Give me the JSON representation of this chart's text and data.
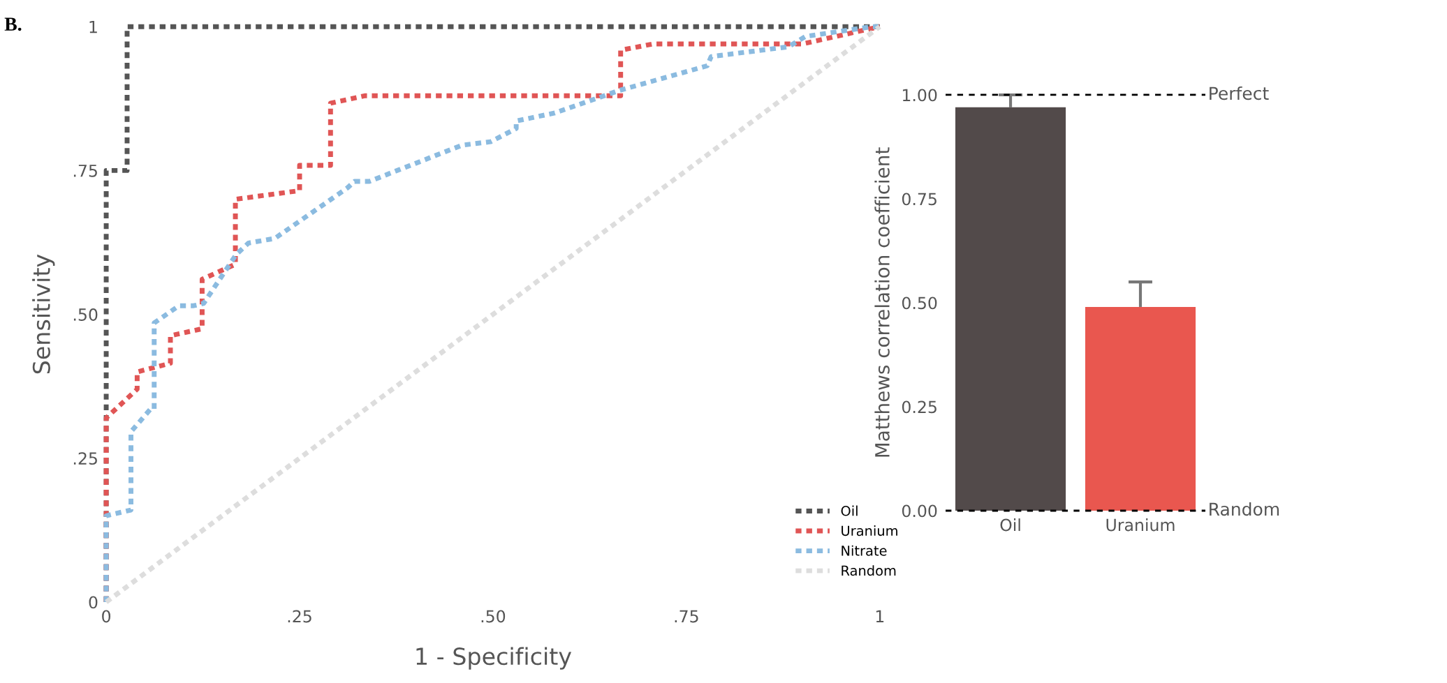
{
  "chart_data": [
    {
      "type": "line",
      "xlabel": "1 - Specificity",
      "ylabel": "Sensitivity",
      "annotations": [
        "B."
      ],
      "xlim": [
        0,
        1
      ],
      "ylim": [
        0,
        1
      ],
      "xticks": [
        0,
        {
          "value": 0.25,
          "label": ".25"
        },
        {
          "value": 0.5,
          "label": ".50"
        },
        {
          "value": 0.75,
          "label": ".75"
        },
        1
      ],
      "yticks": [
        0,
        {
          "value": 0.25,
          "label": ".25"
        },
        {
          "value": 0.5,
          "label": ".50"
        },
        {
          "value": 0.75,
          "label": ".75"
        },
        1
      ],
      "grid": false,
      "legend": "bottom right",
      "line_style": "dashed",
      "marker": "none",
      "series": [
        {
          "name": "Oil",
          "color": "#555555",
          "x": [
            0,
            0,
            0.027,
            0.027,
            1
          ],
          "values": [
            0,
            0.75,
            0.75,
            1,
            1
          ]
        },
        {
          "name": "Uranium",
          "color": "#e05555",
          "x": [
            0,
            0,
            0.04,
            0.04,
            0.083,
            0.083,
            0.124,
            0.124,
            0.167,
            0.167,
            0.25,
            0.25,
            0.29,
            0.29,
            0.335,
            0.665,
            0.665,
            0.707,
            0.9,
            1
          ],
          "values": [
            0,
            0.32,
            0.37,
            0.4,
            0.415,
            0.463,
            0.475,
            0.561,
            0.587,
            0.7,
            0.715,
            0.759,
            0.759,
            0.867,
            0.88,
            0.88,
            0.959,
            0.97,
            0.97,
            1
          ]
        },
        {
          "name": "Nitrate",
          "color": "#8bbbe0",
          "x": [
            0,
            0,
            0.032,
            0.032,
            0.057,
            0.062,
            0.062,
            0.094,
            0.113,
            0.126,
            0.168,
            0.184,
            0.218,
            0.312,
            0.321,
            0.34,
            0.46,
            0.497,
            0.53,
            0.53,
            0.58,
            0.663,
            0.777,
            0.782,
            0.882,
            0.904,
            0.99,
            1
          ],
          "values": [
            0,
            0.15,
            0.16,
            0.296,
            0.335,
            0.335,
            0.485,
            0.515,
            0.515,
            0.519,
            0.604,
            0.624,
            0.632,
            0.72,
            0.731,
            0.731,
            0.794,
            0.8,
            0.823,
            0.836,
            0.85,
            0.889,
            0.932,
            0.948,
            0.965,
            0.983,
            1,
            1
          ]
        },
        {
          "name": "Random",
          "color": "#dddddd",
          "x": [
            0,
            1
          ],
          "values": [
            0,
            1
          ]
        }
      ]
    },
    {
      "type": "bar",
      "ylabel": "Matthews correlation coefficient",
      "categories": [
        "Oil",
        "Uranium"
      ],
      "values": [
        0.97,
        0.49
      ],
      "colors": [
        "#524a4a",
        "#e9574f"
      ],
      "errors": [
        [
          0.97,
          1.0
        ],
        [
          0.49,
          0.55
        ]
      ],
      "ylim": [
        0,
        1
      ],
      "yticks": [
        {
          "value": 0,
          "label": "0.00"
        },
        {
          "value": 0.25,
          "label": "0.25"
        },
        {
          "value": 0.5,
          "label": "0.50"
        },
        {
          "value": 0.75,
          "label": "0.75"
        },
        {
          "value": 1,
          "label": "1.00"
        }
      ],
      "grid": false,
      "ref_lines": [
        {
          "axis": "y",
          "value": 1,
          "label": "Perfect",
          "color": "#000000",
          "line_style": "dashed"
        },
        {
          "axis": "y",
          "value": 0,
          "label": "Random",
          "color": "#000000",
          "line_style": "dashed"
        }
      ]
    }
  ]
}
